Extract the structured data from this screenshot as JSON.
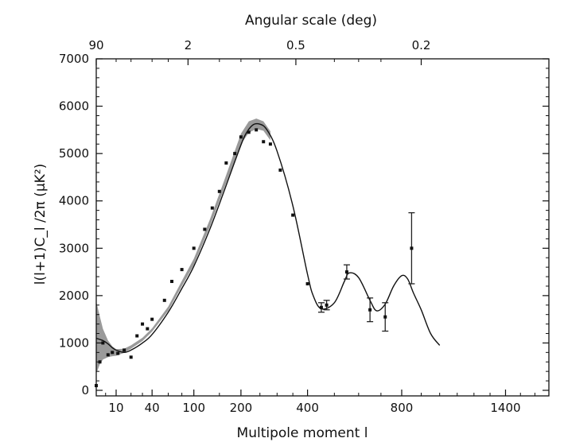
{
  "chart_data": {
    "type": "line",
    "title": "Angular scale (deg)",
    "xlabel": "Multipole moment l",
    "ylabel": "l(l+1)C_l /2π (μK²)",
    "x_scale": "sqrt",
    "xlim": [
      2,
      1700
    ],
    "ylim": [
      0,
      7000
    ],
    "x_ticks": [
      "10",
      "40",
      "100",
      "200",
      "400",
      "800",
      "1400"
    ],
    "y_ticks": [
      "0",
      "1000",
      "2000",
      "3000",
      "4000",
      "5000",
      "6000",
      "7000"
    ],
    "top_axis_label": "Angular scale (deg)",
    "top_ticks": [
      {
        "label": "90",
        "l": 2
      },
      {
        "label": "2",
        "l": 90
      },
      {
        "label": "0.5",
        "l": 360
      },
      {
        "label": "0.2",
        "l": 900
      }
    ],
    "grid": false,
    "series": [
      {
        "kind": "uncertainty-band",
        "x": [
          2,
          3,
          4,
          6,
          8,
          10,
          15,
          20,
          30,
          40,
          60,
          80,
          100,
          130,
          160,
          200,
          220,
          240,
          260,
          280
        ],
        "lower": [
          350,
          550,
          650,
          700,
          720,
          730,
          790,
          880,
          1040,
          1240,
          1680,
          2200,
          2650,
          3450,
          4250,
          5200,
          5440,
          5520,
          5480,
          5280
        ],
        "upper": [
          1880,
          1560,
          1300,
          1050,
          930,
          870,
          880,
          950,
          1110,
          1310,
          1770,
          2310,
          2780,
          3600,
          4420,
          5420,
          5680,
          5740,
          5680,
          5470
        ]
      },
      {
        "kind": "model-curve",
        "x": [
          2,
          4,
          6,
          8,
          10,
          15,
          20,
          30,
          40,
          60,
          80,
          100,
          130,
          160,
          190,
          210,
          230,
          250,
          270,
          300,
          350,
          400,
          420,
          450,
          500,
          540,
          560,
          600,
          650,
          680,
          720,
          760,
          800,
          830,
          860,
          900,
          950,
          1000
        ],
        "y": [
          1100,
          1050,
          980,
          900,
          850,
          800,
          850,
          1000,
          1180,
          1650,
          2150,
          2620,
          3400,
          4200,
          4950,
          5380,
          5600,
          5620,
          5500,
          5050,
          3900,
          2450,
          2000,
          1720,
          1850,
          2300,
          2480,
          2380,
          1900,
          1680,
          1820,
          2200,
          2420,
          2350,
          2050,
          1700,
          1200,
          950
        ]
      },
      {
        "kind": "data-points",
        "x": [
          2,
          3,
          4,
          6,
          8,
          11,
          15,
          20,
          25,
          30,
          35,
          40,
          55,
          65,
          80,
          100,
          120,
          135,
          150,
          165,
          185,
          200,
          220,
          240,
          260,
          280,
          310,
          350,
          400,
          450,
          470,
          550,
          650,
          720,
          850
        ],
        "y": [
          100,
          600,
          1000,
          750,
          800,
          780,
          850,
          700,
          1150,
          1400,
          1300,
          1500,
          1900,
          2300,
          2550,
          3000,
          3400,
          3850,
          4200,
          4800,
          5000,
          5350,
          5450,
          5500,
          5250,
          5200,
          4650,
          3700,
          2250,
          1750,
          1800,
          2500,
          1700,
          1550,
          3000
        ],
        "err": [
          0,
          0,
          0,
          0,
          0,
          0,
          0,
          0,
          0,
          0,
          0,
          0,
          0,
          0,
          0,
          0,
          0,
          0,
          0,
          0,
          0,
          0,
          0,
          0,
          0,
          0,
          0,
          0,
          0,
          100,
          100,
          150,
          250,
          300,
          750
        ]
      }
    ]
  }
}
